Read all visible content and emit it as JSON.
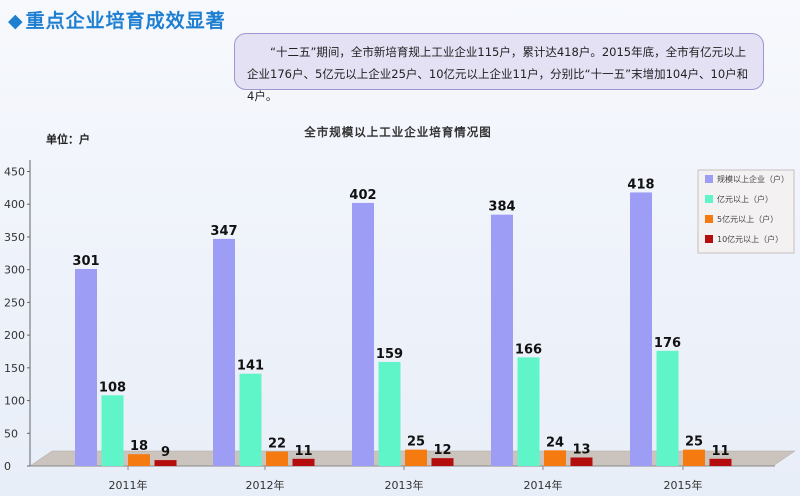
{
  "heading": "重点企业培育成效显著",
  "note": "“十二五”期间，全市新培育规上工业企业115户，累计达418户。2015年底，全市有亿元以上企业176户、5亿元以上企业25户、10亿元以上企业11户，分别比“十一五”末增加104户、10户和4户。",
  "chart_data": {
    "type": "bar",
    "title": "全市规模以上工业企业培育情况图",
    "unit": "单位：户",
    "categories": [
      "2011年",
      "2012年",
      "2013年",
      "2014年",
      "2015年"
    ],
    "yticks": [
      "0",
      "50",
      "100",
      "150",
      "200",
      "250",
      "300",
      "350",
      "400",
      "450"
    ],
    "ylim": [
      0,
      450
    ],
    "series": [
      {
        "name": "规模以上企业（户）",
        "color": "#9d9df5",
        "values": [
          301,
          347,
          402,
          384,
          418
        ],
        "labels": [
          "301",
          "347",
          "402",
          "384",
          "418"
        ]
      },
      {
        "name": "亿元以上（户）",
        "color": "#5ff5c8",
        "values": [
          108,
          141,
          159,
          166,
          176
        ],
        "labels": [
          "108",
          "141",
          "159",
          "166",
          "176"
        ]
      },
      {
        "name": "5亿元以上（户）",
        "color": "#f57a10",
        "values": [
          18,
          22,
          25,
          24,
          25
        ],
        "labels": [
          "18",
          "22",
          "25",
          "24",
          "25"
        ]
      },
      {
        "name": "10亿元以上（户）",
        "color": "#b30d0d",
        "values": [
          9,
          11,
          12,
          13,
          11
        ],
        "labels": [
          "9",
          "11",
          "12",
          "13",
          "11"
        ]
      }
    ],
    "legend": "right"
  }
}
